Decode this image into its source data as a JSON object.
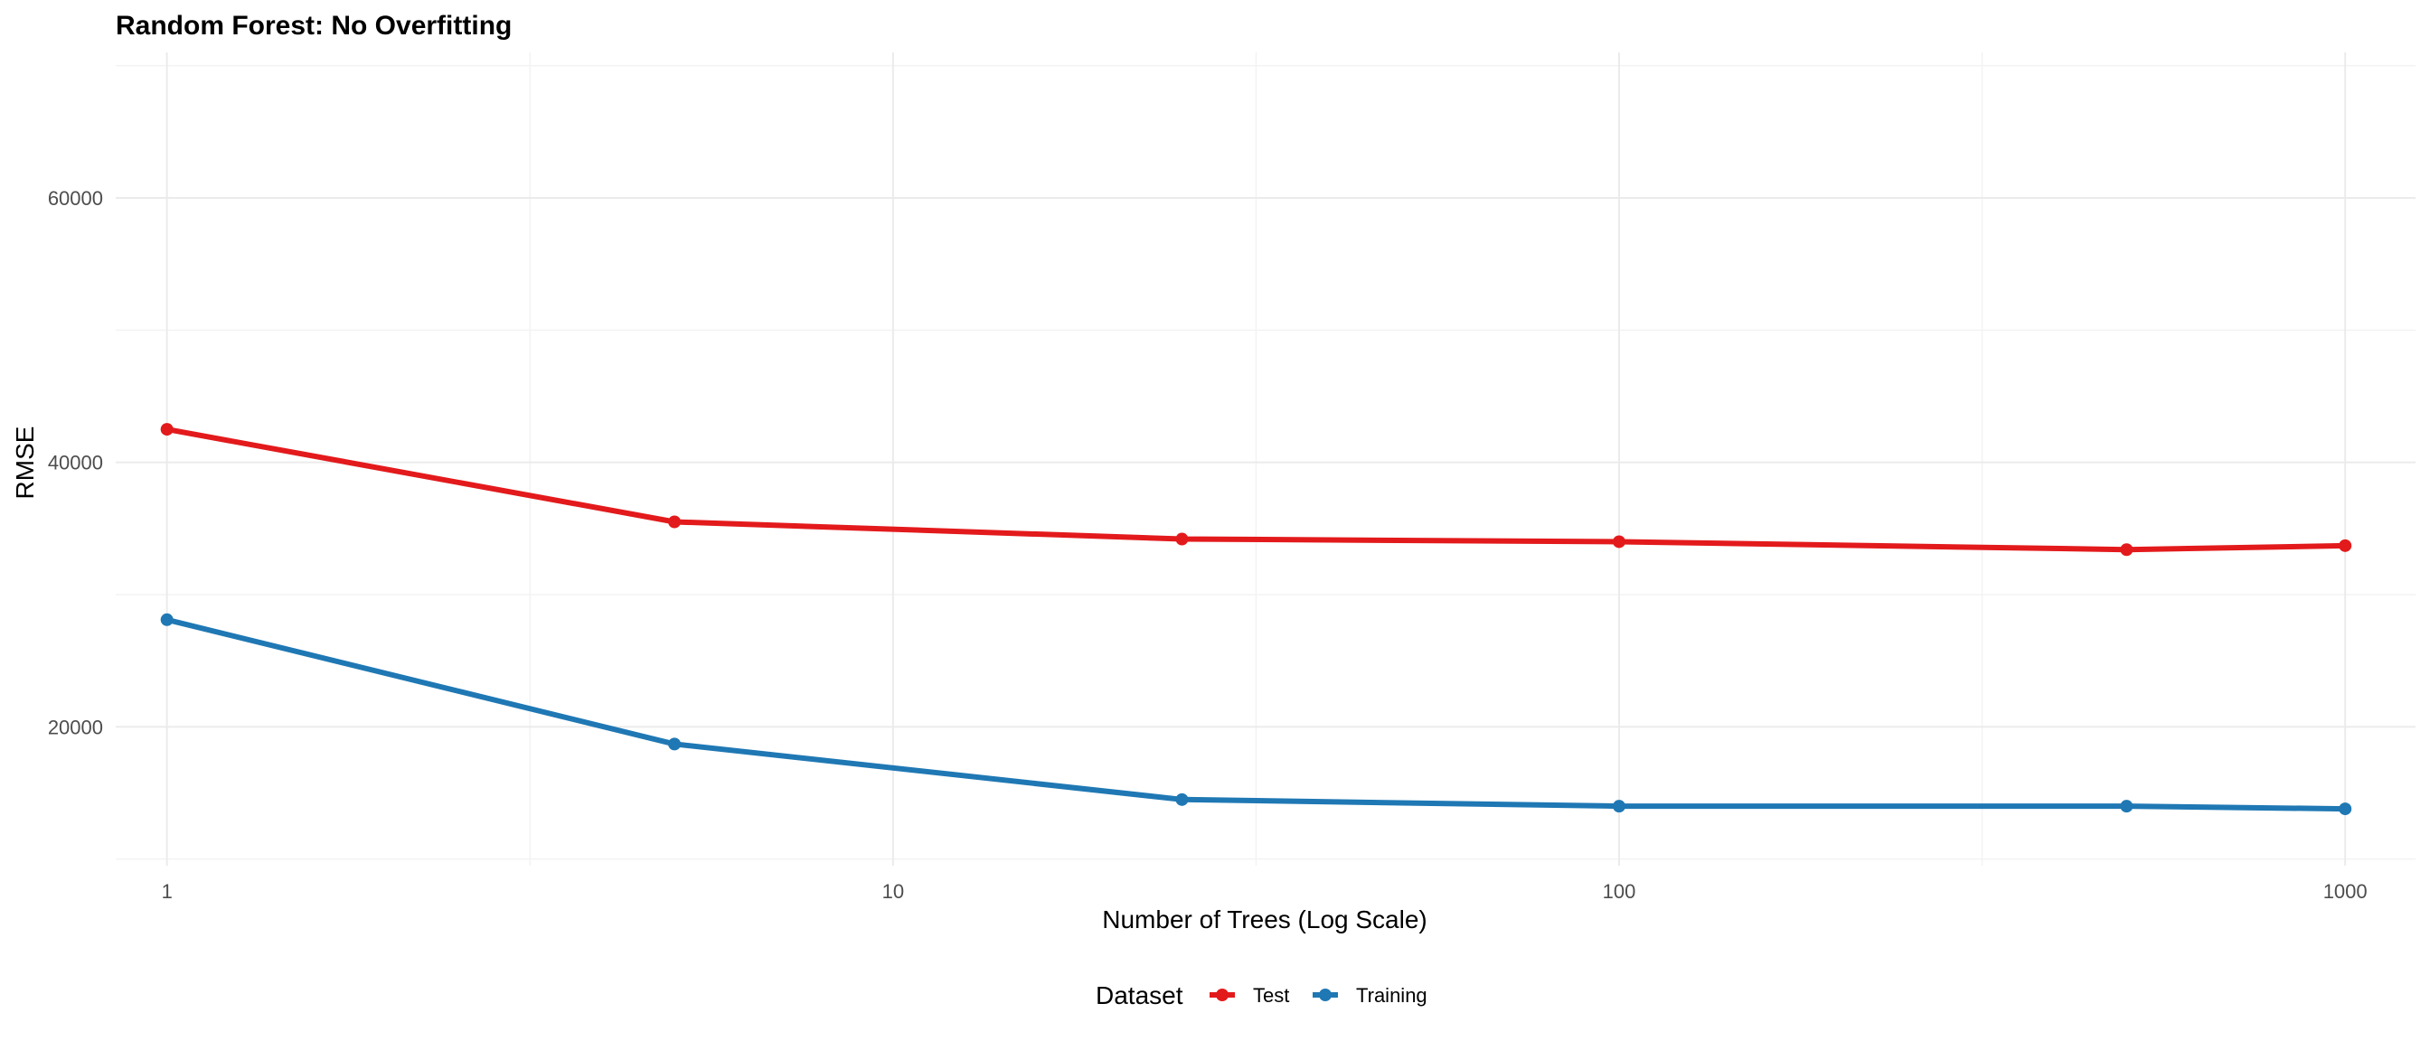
{
  "chart_data": {
    "type": "line",
    "title": "Random Forest: No Overfitting",
    "xlabel": "Number of Trees (Log Scale)",
    "ylabel": "RMSE",
    "x_scale": "log10",
    "xlim": [
      0.85,
      1250
    ],
    "ylim": [
      9500,
      71000
    ],
    "x_ticks": [
      1,
      10,
      100,
      1000
    ],
    "x_tick_labels": [
      "1",
      "10",
      "100",
      "1000"
    ],
    "y_ticks": [
      20000,
      40000,
      60000
    ],
    "y_tick_labels": [
      "20000",
      "40000",
      "60000"
    ],
    "grid": true,
    "legend_title": "Dataset",
    "legend_position": "bottom",
    "x": [
      1,
      5,
      25,
      100,
      500,
      1000
    ],
    "series": [
      {
        "name": "Test",
        "color": "#e31a1c",
        "values": [
          42500,
          35500,
          34200,
          34000,
          33400,
          33700
        ]
      },
      {
        "name": "Training",
        "color": "#1f78b4",
        "values": [
          28100,
          18700,
          14500,
          14000,
          14000,
          13800
        ]
      }
    ]
  }
}
